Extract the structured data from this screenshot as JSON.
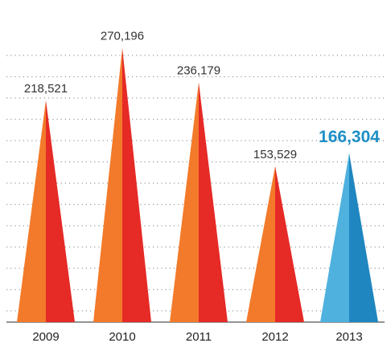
{
  "chart_data": {
    "type": "bar",
    "mark_shape": "triangle",
    "title": "",
    "xlabel": "",
    "ylabel": "",
    "categories": [
      "2009",
      "2010",
      "2011",
      "2012",
      "2013"
    ],
    "values": [
      218521,
      270196,
      236179,
      153529,
      166304
    ],
    "value_labels": [
      "218,521",
      "270,196",
      "236,179",
      "153,529",
      "166,304"
    ],
    "highlight_index": 4,
    "ylim": [
      0,
      280000
    ],
    "grid": true,
    "legend": "none",
    "colors": {
      "default_left": "#f27a2a",
      "default_right": "#e62a26",
      "highlight_left": "#4fb1de",
      "highlight_right": "#1f86bf",
      "highlight_label": "#1e8fc6"
    }
  }
}
